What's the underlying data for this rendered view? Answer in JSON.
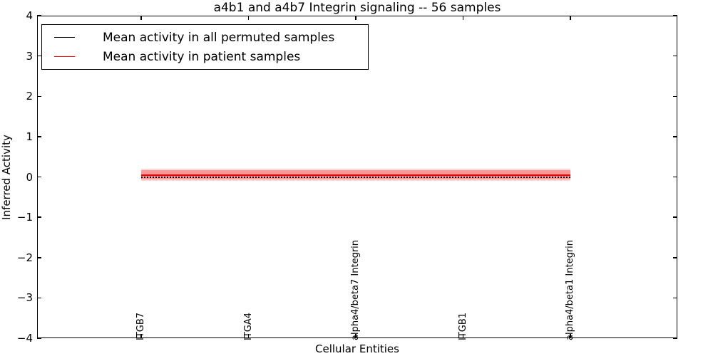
{
  "title": "a4b1 and a4b7 Integrin signaling -- 56 samples",
  "legend": {
    "entries": [
      {
        "label": "Mean activity in all permuted samples",
        "color": "#000000",
        "line_style": "solid-sample"
      },
      {
        "label": "Mean activity in patient samples",
        "color": "#ff0000",
        "line_style": "solid-sample"
      }
    ],
    "position": "upper left"
  },
  "chart_data": {
    "type": "line",
    "title": "a4b1 and a4b7 Integrin signaling -- 56 samples",
    "xlabel": "Cellular Entities",
    "ylabel": "Inferred Activity",
    "ylim": [
      -4,
      4
    ],
    "y_ticks": [
      4,
      3,
      2,
      1,
      0,
      -1,
      -2,
      -3,
      -4
    ],
    "y_tick_labels": [
      "4",
      "3",
      "2",
      "1",
      "0",
      "−1",
      "−2",
      "−3",
      "−4"
    ],
    "categories": [
      "ITGB7",
      "ITGA4",
      "alpha4/beta7 Integrin",
      "ITGB1",
      "alpha4/beta1 Integrin"
    ],
    "series": [
      {
        "name": "Mean activity in all permuted samples",
        "color": "#000000",
        "line_style": "dotted",
        "values": [
          0,
          0,
          0,
          0,
          0
        ]
      },
      {
        "name": "Mean activity in patient samples",
        "color": "#ff0000",
        "line_style": "solid",
        "values": [
          0.05,
          0.05,
          0.05,
          0.05,
          0.05
        ],
        "std": 0.11,
        "band_color": "rgba(255,0,0,0.30)",
        "band_edge_color": "rgba(255,0,0,0.14)"
      }
    ],
    "sample_count": 56,
    "grid": false,
    "legend_position": "upper left"
  }
}
